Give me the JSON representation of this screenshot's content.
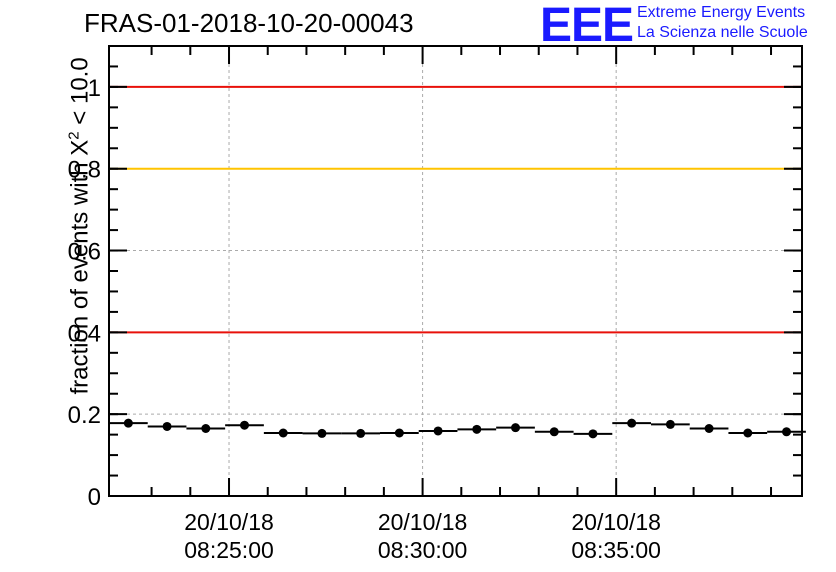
{
  "title": "FRAS-01-2018-10-20-00043",
  "logo": {
    "mark": "EEE",
    "line1": "Extreme Energy Events",
    "line2": "La Scienza nelle Scuole"
  },
  "chart_data": {
    "type": "scatter",
    "ylabel_prefix": "fraction of events with X",
    "ylabel_superscript": "2",
    "ylabel_suffix": " < 10.0",
    "ylim": [
      0,
      1.1
    ],
    "yticks": [
      0,
      0.2,
      0.4,
      0.6,
      0.8,
      1
    ],
    "ytick_labels": [
      "0",
      "0.2",
      "0.4",
      "0.6",
      "0.8",
      "1"
    ],
    "xlim_minutes": [
      -3.1,
      14.8
    ],
    "xticks_minutes": [
      0,
      5,
      10
    ],
    "xtick_labels": [
      {
        "date": "20/10/18",
        "time": "08:25:00"
      },
      {
        "date": "20/10/18",
        "time": "08:30:00"
      },
      {
        "date": "20/10/18",
        "time": "08:35:00"
      }
    ],
    "reference_lines": [
      {
        "y": 1.0,
        "color": "#e8100a"
      },
      {
        "y": 0.8,
        "color": "#ffc400"
      },
      {
        "y": 0.4,
        "color": "#e8100a"
      }
    ],
    "grid": true,
    "bin_width_minutes": 1.0,
    "x_minutes": [
      -2.6,
      -1.6,
      -0.6,
      0.4,
      1.4,
      2.4,
      3.4,
      4.4,
      5.4,
      6.4,
      7.4,
      8.4,
      9.4,
      10.4,
      11.4,
      12.4,
      13.4,
      14.4
    ],
    "values": [
      0.178,
      0.17,
      0.165,
      0.173,
      0.154,
      0.153,
      0.153,
      0.154,
      0.159,
      0.163,
      0.167,
      0.157,
      0.152,
      0.178,
      0.175,
      0.165,
      0.154,
      0.157
    ]
  }
}
